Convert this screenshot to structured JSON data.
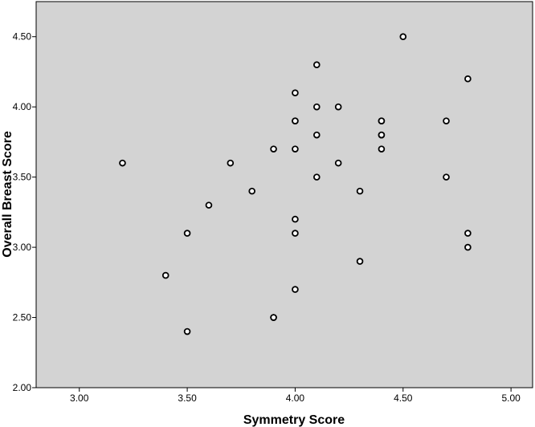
{
  "chart_data": {
    "type": "scatter",
    "title": "",
    "xlabel": "Symmetry Score",
    "ylabel": "Overall Breast Score",
    "xlim": [
      2.8,
      5.1
    ],
    "ylim": [
      2.0,
      4.75
    ],
    "x_ticks": [
      "3.00",
      "3.50",
      "4.00",
      "4.50",
      "5.00"
    ],
    "y_ticks": [
      "2.00",
      "2.50",
      "3.00",
      "3.50",
      "4.00",
      "4.50"
    ],
    "grid": false,
    "legend": "none",
    "colors": {
      "plot_background": "#d3d3d3",
      "marker_stroke": "#000000",
      "marker_fill": "#ffffff"
    },
    "series": [
      {
        "points": [
          {
            "x": 3.2,
            "y": 3.6
          },
          {
            "x": 3.4,
            "y": 2.8
          },
          {
            "x": 3.5,
            "y": 3.1
          },
          {
            "x": 3.5,
            "y": 2.4
          },
          {
            "x": 3.6,
            "y": 3.3
          },
          {
            "x": 3.7,
            "y": 3.6
          },
          {
            "x": 3.8,
            "y": 3.4
          },
          {
            "x": 3.9,
            "y": 3.7
          },
          {
            "x": 3.9,
            "y": 2.5
          },
          {
            "x": 3.9,
            "y": 2.5
          },
          {
            "x": 4.0,
            "y": 4.1
          },
          {
            "x": 4.0,
            "y": 3.9
          },
          {
            "x": 4.0,
            "y": 3.9
          },
          {
            "x": 4.0,
            "y": 3.7
          },
          {
            "x": 4.0,
            "y": 3.2
          },
          {
            "x": 4.0,
            "y": 3.1
          },
          {
            "x": 4.0,
            "y": 2.7
          },
          {
            "x": 4.1,
            "y": 4.3
          },
          {
            "x": 4.1,
            "y": 4.0
          },
          {
            "x": 4.1,
            "y": 3.8
          },
          {
            "x": 4.1,
            "y": 3.5
          },
          {
            "x": 4.2,
            "y": 4.0
          },
          {
            "x": 4.2,
            "y": 3.6
          },
          {
            "x": 4.3,
            "y": 3.4
          },
          {
            "x": 4.3,
            "y": 2.9
          },
          {
            "x": 4.4,
            "y": 3.9
          },
          {
            "x": 4.4,
            "y": 3.9
          },
          {
            "x": 4.4,
            "y": 3.8
          },
          {
            "x": 4.4,
            "y": 3.8
          },
          {
            "x": 4.4,
            "y": 3.7
          },
          {
            "x": 4.5,
            "y": 4.5
          },
          {
            "x": 4.7,
            "y": 3.9
          },
          {
            "x": 4.7,
            "y": 3.5
          },
          {
            "x": 4.8,
            "y": 4.2
          },
          {
            "x": 4.8,
            "y": 3.1
          },
          {
            "x": 4.8,
            "y": 3.0
          }
        ]
      }
    ]
  }
}
